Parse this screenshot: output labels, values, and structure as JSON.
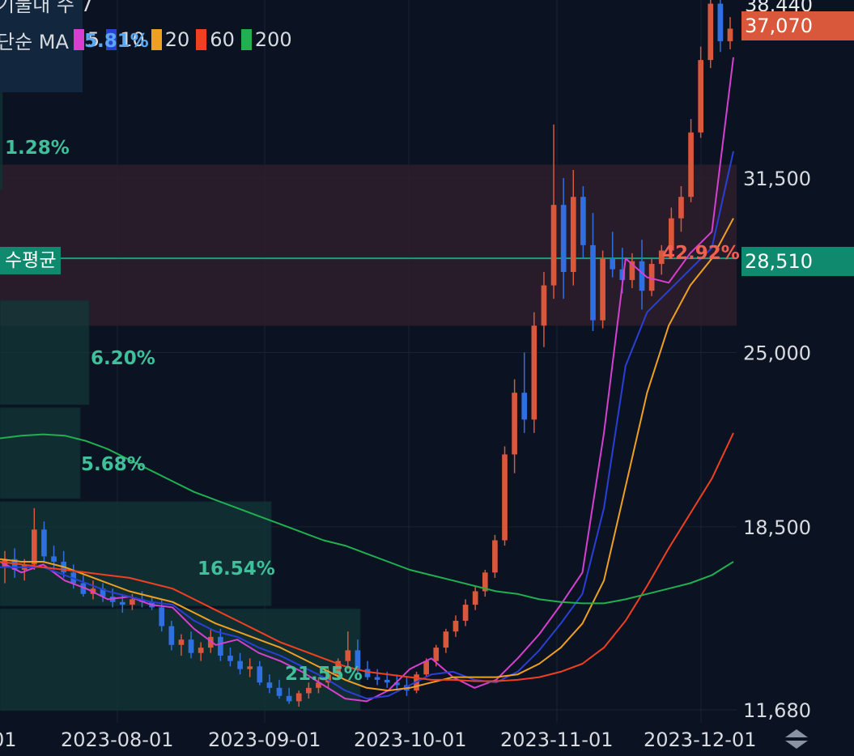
{
  "header": {
    "top_clipped_text": "기물내 수 7",
    "ma_prefix": "단순 MA",
    "ma_overlay_text": "5.81%"
  },
  "legend": [
    {
      "label": "5",
      "color": "#d63fd0"
    },
    {
      "label": "10",
      "color": "#2a3fd6"
    },
    {
      "label": "20",
      "color": "#f0a020"
    },
    {
      "label": "60",
      "color": "#f04020"
    },
    {
      "label": "200",
      "color": "#20b050"
    }
  ],
  "price_tags": {
    "top_clipped": "38,440",
    "current": "37,070",
    "current_color": "#d9573a",
    "average": "28,510",
    "average_color": "#0f8a6f"
  },
  "average_line": {
    "label": "수평균",
    "value": 28510
  },
  "volume_profile_labels": [
    "1.28%",
    "6.20%",
    "5.68%",
    "16.54%",
    "21.55%",
    "42.92%"
  ],
  "chart_data": {
    "type": "candlestick",
    "y_axis": {
      "ticks": [
        11680,
        18500,
        25000,
        31500
      ],
      "tick_labels": [
        "11,680",
        "18,500",
        "25,000",
        "31,500"
      ],
      "range": [
        11400,
        39000
      ]
    },
    "x_axis": {
      "tick_labels": [
        "01",
        "2023-08-01",
        "2023-09-01",
        "2023-10-01",
        "2023-11-01",
        "2023-12-01"
      ]
    },
    "current_price": 37070,
    "average_price": 28510,
    "highlight_band": [
      26000,
      32000
    ],
    "volume_profile": [
      {
        "label": "1.28%",
        "low": 31000,
        "high": 35000
      },
      {
        "label": "6.20%",
        "low": 23000,
        "high": 27000
      },
      {
        "label": "5.68%",
        "low": 19500,
        "high": 23000
      },
      {
        "label": "16.54%",
        "low": 15500,
        "high": 19500
      },
      {
        "label": "21.55%",
        "low": 11600,
        "high": 15500
      },
      {
        "label": "42.92%",
        "low": 27000,
        "high": 31000
      }
    ],
    "series": [
      {
        "name": "5",
        "values": [
          17200,
          16800,
          17100,
          16500,
          16200,
          15800,
          15900,
          15600,
          15500,
          14700,
          14100,
          14300,
          13800,
          13500,
          13100,
          12600,
          12100,
          12000,
          12400,
          13200,
          13600,
          12900,
          12500,
          12800,
          13600,
          14500,
          15600,
          16800,
          22000,
          28500,
          27800,
          27600,
          28700,
          29500,
          36000
        ]
      },
      {
        "name": "10",
        "values": [
          17000,
          17000,
          17000,
          16700,
          16400,
          16100,
          15900,
          15700,
          15600,
          15000,
          14600,
          14400,
          14000,
          13700,
          13300,
          12900,
          12400,
          12100,
          12200,
          12600,
          13000,
          13100,
          12800,
          12700,
          13100,
          13900,
          14900,
          16000,
          19200,
          24500,
          26500,
          27300,
          28100,
          28900,
          32500
        ]
      },
      {
        "name": "20",
        "values": [
          17300,
          17200,
          17200,
          17000,
          16700,
          16400,
          16100,
          15900,
          15700,
          15300,
          14900,
          14600,
          14300,
          14000,
          13600,
          13200,
          12800,
          12500,
          12400,
          12500,
          12700,
          12900,
          12900,
          12900,
          13000,
          13400,
          14000,
          14900,
          16500,
          20000,
          23500,
          26000,
          27500,
          28500,
          30000
        ]
      },
      {
        "name": "60",
        "values": [
          17200,
          17100,
          17000,
          16900,
          16800,
          16700,
          16600,
          16400,
          16200,
          15800,
          15400,
          15000,
          14600,
          14200,
          13900,
          13600,
          13300,
          13100,
          13000,
          12900,
          12800,
          12800,
          12750,
          12750,
          12800,
          12900,
          13100,
          13400,
          14000,
          15000,
          16300,
          17700,
          19000,
          20300,
          22000
        ]
      },
      {
        "name": "200",
        "values": [
          21800,
          21900,
          21950,
          21900,
          21700,
          21400,
          21000,
          20600,
          20200,
          19800,
          19500,
          19200,
          18900,
          18600,
          18300,
          18000,
          17800,
          17500,
          17200,
          16900,
          16700,
          16500,
          16300,
          16100,
          16000,
          15800,
          15700,
          15650,
          15650,
          15800,
          16000,
          16200,
          16400,
          16700,
          17200
        ]
      }
    ],
    "candles_summary": "daily candles from Jul to early Dec 2023, rising sharply in November",
    "candles": [
      [
        17000,
        17600,
        16400,
        17300
      ],
      [
        17300,
        17700,
        16600,
        16900
      ],
      [
        16900,
        17300,
        16500,
        17100
      ],
      [
        17100,
        19200,
        16900,
        18400
      ],
      [
        18400,
        18700,
        17200,
        17400
      ],
      [
        17400,
        17800,
        16900,
        17200
      ],
      [
        17200,
        17600,
        16600,
        16800
      ],
      [
        16800,
        17100,
        16200,
        16400
      ],
      [
        16400,
        16700,
        15900,
        16000
      ],
      [
        16000,
        16500,
        15800,
        16200
      ],
      [
        16200,
        16400,
        15700,
        15900
      ],
      [
        15900,
        16200,
        15500,
        15700
      ],
      [
        15700,
        16000,
        15300,
        15600
      ],
      [
        15600,
        16000,
        15400,
        15800
      ],
      [
        15800,
        16100,
        15500,
        15700
      ],
      [
        15700,
        15900,
        15400,
        15500
      ],
      [
        15500,
        15800,
        14600,
        14800
      ],
      [
        14800,
        15000,
        13900,
        14100
      ],
      [
        14100,
        14500,
        13700,
        14300
      ],
      [
        14300,
        14600,
        13600,
        13800
      ],
      [
        13800,
        14200,
        13500,
        14000
      ],
      [
        14000,
        14700,
        13800,
        14400
      ],
      [
        14400,
        14700,
        13500,
        13700
      ],
      [
        13700,
        14000,
        13300,
        13500
      ],
      [
        13500,
        13800,
        13000,
        13200
      ],
      [
        13200,
        13600,
        12900,
        13300
      ],
      [
        13300,
        13500,
        12600,
        12700
      ],
      [
        12700,
        13000,
        12300,
        12500
      ],
      [
        12500,
        12800,
        12100,
        12200
      ],
      [
        12200,
        12500,
        11900,
        12000
      ],
      [
        12000,
        12400,
        11800,
        12300
      ],
      [
        12300,
        12700,
        12100,
        12500
      ],
      [
        12500,
        12900,
        12300,
        12700
      ],
      [
        12700,
        13200,
        12500,
        13000
      ],
      [
        13000,
        13600,
        12800,
        13500
      ],
      [
        13500,
        14600,
        13200,
        13900
      ],
      [
        13900,
        14300,
        13000,
        13200
      ],
      [
        13200,
        13500,
        12800,
        12900
      ],
      [
        12900,
        13200,
        12600,
        12800
      ],
      [
        12800,
        13100,
        12500,
        12700
      ],
      [
        12700,
        13000,
        12400,
        12600
      ],
      [
        12600,
        12900,
        12200,
        12400
      ],
      [
        12400,
        13100,
        12300,
        13000
      ],
      [
        13000,
        13600,
        12900,
        13500
      ],
      [
        13500,
        14100,
        13300,
        14000
      ],
      [
        14000,
        14700,
        13800,
        14600
      ],
      [
        14600,
        15200,
        14400,
        15000
      ],
      [
        15000,
        15800,
        14800,
        15600
      ],
      [
        15600,
        16300,
        15400,
        16100
      ],
      [
        16100,
        16900,
        15900,
        16800
      ],
      [
        16800,
        18200,
        16600,
        18000
      ],
      [
        18000,
        21500,
        17800,
        21200
      ],
      [
        21200,
        24000,
        20500,
        23500
      ],
      [
        23500,
        25000,
        22000,
        22500
      ],
      [
        22500,
        26500,
        22000,
        26000
      ],
      [
        26000,
        28000,
        25200,
        27500
      ],
      [
        27500,
        33500,
        27000,
        30500
      ],
      [
        30500,
        31500,
        27000,
        28000
      ],
      [
        28000,
        31800,
        27500,
        30800
      ],
      [
        30800,
        31200,
        28500,
        29000
      ],
      [
        29000,
        30200,
        25800,
        26200
      ],
      [
        26200,
        28800,
        25900,
        28500
      ],
      [
        28500,
        29500,
        27800,
        28100
      ],
      [
        28100,
        28900,
        27200,
        27700
      ],
      [
        27700,
        28700,
        27400,
        28400
      ],
      [
        28400,
        29200,
        26600,
        27300
      ],
      [
        27300,
        28500,
        27100,
        28300
      ],
      [
        28300,
        29000,
        27900,
        28800
      ],
      [
        28800,
        30400,
        28500,
        30000
      ],
      [
        30000,
        31200,
        29500,
        30800
      ],
      [
        30800,
        33700,
        30600,
        33200
      ],
      [
        33200,
        36400,
        33000,
        35900
      ],
      [
        35900,
        39500,
        35600,
        38000
      ],
      [
        38000,
        38800,
        36200,
        36600
      ],
      [
        36600,
        37500,
        36300,
        37070
      ]
    ]
  }
}
